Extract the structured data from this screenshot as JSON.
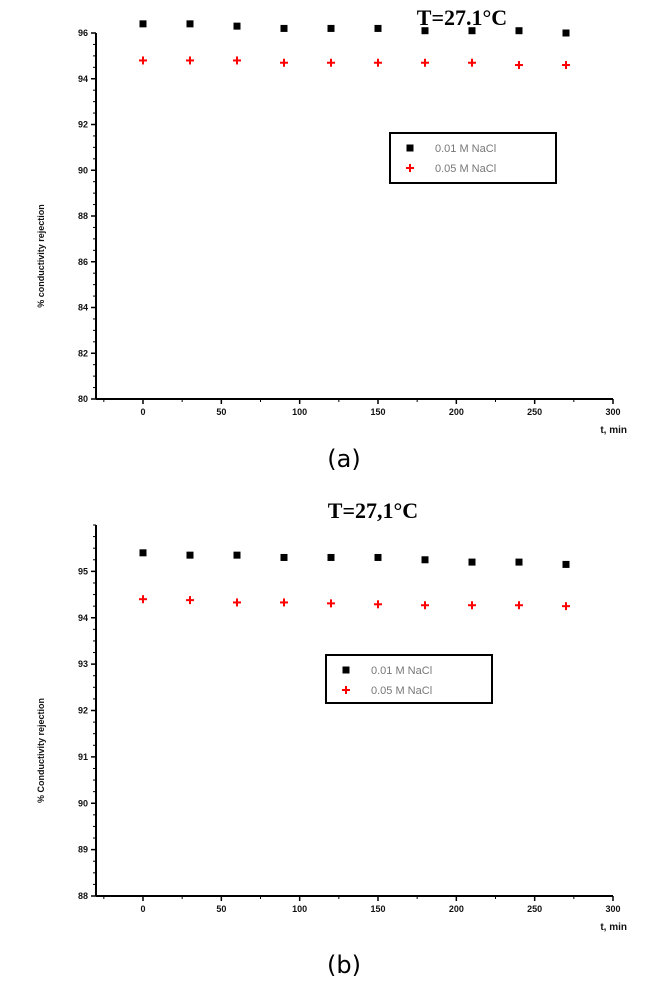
{
  "chart_data": [
    {
      "type": "scatter",
      "panel_label": "(a)",
      "title": "T=27.1°C",
      "xlabel": "t, min",
      "ylabel": "% conductivity rejection",
      "xlim": [
        -30,
        300
      ],
      "ylim": [
        80,
        96
      ],
      "xticks": [
        0,
        50,
        100,
        150,
        200,
        250,
        300
      ],
      "yticks": [
        80,
        82,
        84,
        86,
        88,
        90,
        92,
        94,
        96
      ],
      "legend": "center-right",
      "series": [
        {
          "name": "0.01 M NaCl",
          "marker": "square",
          "color": "#000000",
          "x": [
            0,
            30,
            60,
            90,
            120,
            150,
            180,
            210,
            240,
            270
          ],
          "y": [
            96.4,
            96.4,
            96.3,
            96.2,
            96.2,
            96.2,
            96.1,
            96.1,
            96.1,
            96.0
          ]
        },
        {
          "name": "0.05 M NaCl",
          "marker": "plus",
          "color": "#ff0000",
          "x": [
            0,
            30,
            60,
            90,
            120,
            150,
            180,
            210,
            240,
            270
          ],
          "y": [
            94.8,
            94.8,
            94.8,
            94.7,
            94.7,
            94.7,
            94.7,
            94.7,
            94.6,
            94.6
          ]
        }
      ]
    },
    {
      "type": "scatter",
      "panel_label": "(b)",
      "title": "T=27,1°C",
      "xlabel": "t, min",
      "ylabel": "% Conductivity rejection",
      "xlim": [
        -30,
        300
      ],
      "ylim": [
        88,
        96
      ],
      "xticks": [
        0,
        50,
        100,
        150,
        200,
        250,
        300
      ],
      "yticks": [
        88,
        89,
        90,
        91,
        92,
        93,
        94,
        95
      ],
      "legend": "center-right",
      "series": [
        {
          "name": "0.01 M NaCl",
          "marker": "square",
          "color": "#000000",
          "x": [
            0,
            30,
            60,
            90,
            120,
            150,
            180,
            210,
            240,
            270
          ],
          "y": [
            95.4,
            95.35,
            95.35,
            95.3,
            95.3,
            95.3,
            95.25,
            95.2,
            95.2,
            95.15
          ]
        },
        {
          "name": "0.05 M NaCl",
          "marker": "plus",
          "color": "#ff0000",
          "x": [
            0,
            30,
            60,
            90,
            120,
            150,
            180,
            210,
            240,
            270
          ],
          "y": [
            94.4,
            94.38,
            94.33,
            94.33,
            94.31,
            94.29,
            94.27,
            94.27,
            94.27,
            94.25
          ]
        }
      ]
    }
  ]
}
